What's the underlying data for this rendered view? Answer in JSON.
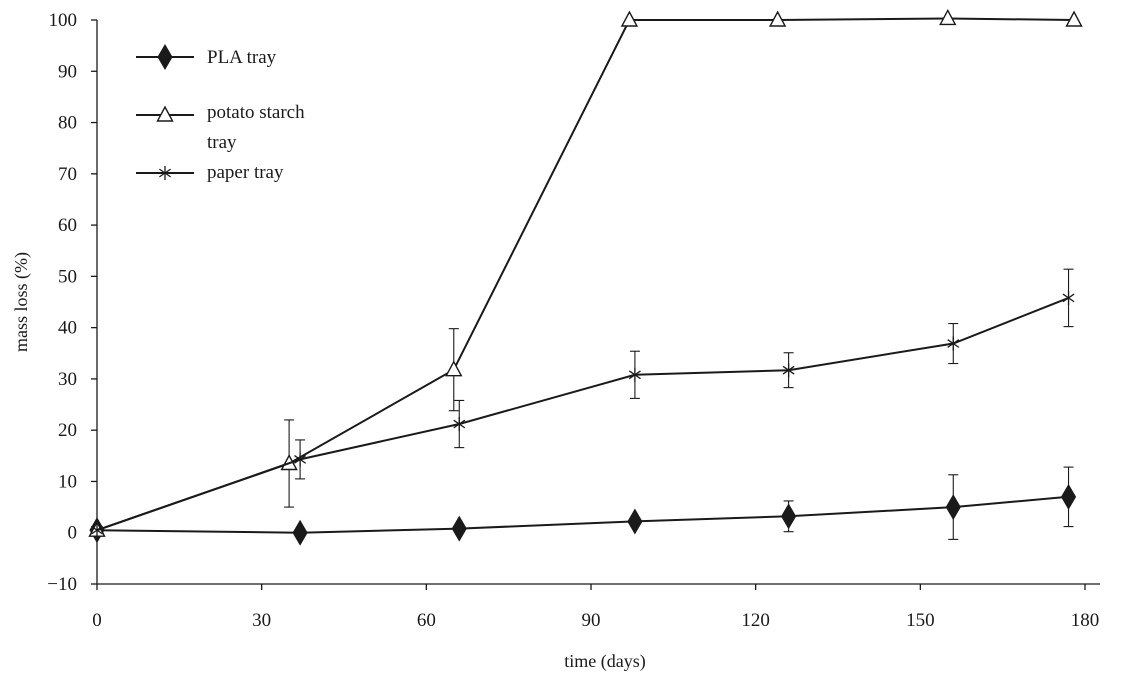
{
  "chart_data": {
    "type": "line",
    "title": "",
    "xlabel": "time (days)",
    "ylabel": "mass loss (%)",
    "xlim": [
      0,
      180
    ],
    "ylim": [
      -10,
      100
    ],
    "xticks": [
      0,
      30,
      60,
      90,
      120,
      150,
      180
    ],
    "yticks": [
      -10,
      0,
      10,
      20,
      30,
      40,
      50,
      60,
      70,
      80,
      90,
      100
    ],
    "grid": false,
    "legend_position": "top-left",
    "line_color": "#1a1a1a",
    "series": [
      {
        "name": "PLA tray",
        "marker": "diamond",
        "x": [
          0,
          37,
          66,
          98,
          126,
          156,
          177
        ],
        "y": [
          0.5,
          0,
          0.8,
          2.2,
          3.2,
          5,
          7
        ],
        "err": [
          0.5,
          0,
          0,
          0,
          3,
          6.3,
          5.8
        ]
      },
      {
        "name": "potato starch tray",
        "legend_lines": [
          "potato starch",
          "tray"
        ],
        "marker": "triangle-open",
        "x": [
          0,
          35,
          65,
          97,
          124,
          155,
          178
        ],
        "y": [
          0.5,
          13.5,
          31.8,
          100,
          100,
          100.3,
          100
        ],
        "err": [
          0,
          8.5,
          8,
          0,
          0,
          0,
          0
        ]
      },
      {
        "name": "paper tray",
        "marker": "asterisk",
        "x": [
          0,
          37,
          66,
          98,
          126,
          156,
          177
        ],
        "y": [
          0.5,
          14.3,
          21.2,
          30.8,
          31.7,
          36.9,
          45.8
        ],
        "err": [
          0,
          3.8,
          4.6,
          4.6,
          3.4,
          3.9,
          5.6
        ]
      }
    ]
  }
}
